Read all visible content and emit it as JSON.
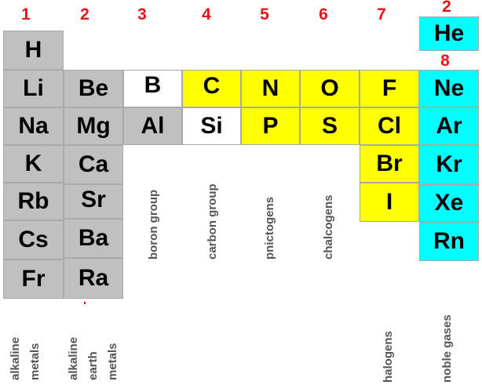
{
  "group_numbers": [
    "1",
    "2",
    "3",
    "4",
    "5",
    "6",
    "7",
    "2",
    "8"
  ],
  "elements": {
    "h": "H",
    "li": "Li",
    "na": "Na",
    "k": "K",
    "rb": "Rb",
    "cs": "Cs",
    "fr": "Fr",
    "be": "Be",
    "mg": "Mg",
    "ca": "Ca",
    "sr": "Sr",
    "ba": "Ba",
    "ra": "Ra",
    "b": "B",
    "al": "Al",
    "c": "C",
    "si": "Si",
    "n": "N",
    "p": "P",
    "o": "O",
    "s": "S",
    "f": "F",
    "cl": "Cl",
    "br": "Br",
    "i": "I",
    "he": "He",
    "ne": "Ne",
    "ar": "Ar",
    "kr": "Kr",
    "xe": "Xe",
    "rn": "Rn"
  },
  "group_labels": {
    "alkaline_metals": [
      "alkaline",
      "metals"
    ],
    "alkaline_earth_metals": [
      "alkaline",
      "earth",
      "metals"
    ],
    "boron_group": "boron group",
    "carbon_group": "carbon group",
    "pnictogens": "pnictogens",
    "chalcogens": "chalcogens",
    "halogens": "halogens",
    "noble_gases": "noble gases"
  },
  "colors": {
    "metal_gray": "#c0c0c0",
    "nonmetal_white": "#ffffff",
    "nonmetal_yellow": "#ffff00",
    "noble_cyan": "#00ffff",
    "group_number_red": "#e8131b",
    "label_gray": "#555555"
  }
}
